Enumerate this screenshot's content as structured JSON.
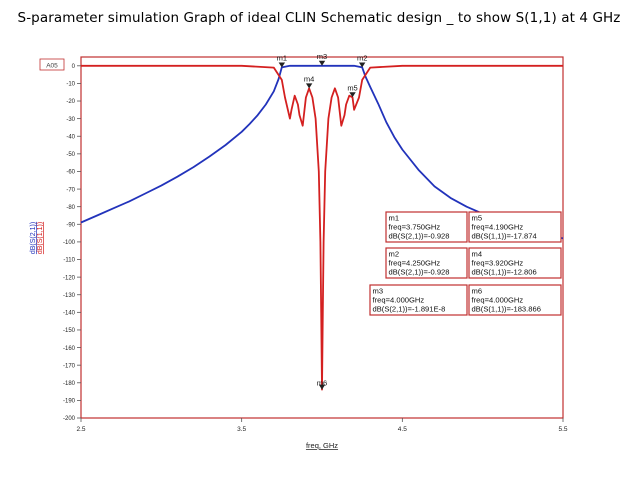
{
  "title": "S-parameter  simulation Graph of ideal CLIN Schematic design _ to show S(1,1) at 4 GHz",
  "colors": {
    "s21": "#2233bb",
    "s11": "#d42020",
    "frame": "#c03030",
    "grid": "#aaaaaa",
    "marker": "#222222"
  },
  "chart_data": {
    "type": "line",
    "title": "S-parameter  simulation Graph of ideal CLIN Schematic design _ to show S(1,1) at 4 GHz",
    "xlabel": "freq, GHz",
    "ylabel_lines": [
      "dB(S(2,1))",
      "dB(S(1,1))"
    ],
    "xlim": [
      2.5,
      5.5
    ],
    "ylim": [
      -200,
      5
    ],
    "x_ticks": [
      2.5,
      3.5,
      4.5,
      5.5
    ],
    "x_tick_labels": [
      "2.5",
      "3.5",
      "4.5",
      "5.5"
    ],
    "y_ticks": [
      0,
      -10,
      -20,
      -30,
      -40,
      -50,
      -60,
      -70,
      -80,
      -90,
      -100,
      -110,
      -120,
      -130,
      -140,
      -150,
      -160,
      -170,
      -180,
      -190,
      -200
    ],
    "y_tick_labels": [
      "0",
      "-10",
      "-20",
      "-30",
      "-40",
      "-50",
      "-60",
      "-70",
      "-80",
      "-90",
      "-100",
      "-110",
      "-120",
      "-130",
      "-140",
      "-150",
      "-160",
      "-170",
      "-180",
      "-190",
      "-200"
    ],
    "corner_label": "A05",
    "grid": false,
    "series": [
      {
        "name": "dB(S(2,1))",
        "color": "#2233bb",
        "x": [
          2.5,
          2.6,
          2.7,
          2.8,
          2.9,
          3.0,
          3.1,
          3.2,
          3.3,
          3.4,
          3.5,
          3.55,
          3.6,
          3.65,
          3.7,
          3.73,
          3.75,
          3.8,
          4.0,
          4.2,
          4.25,
          4.27,
          4.3,
          4.35,
          4.4,
          4.45,
          4.5,
          4.6,
          4.7,
          4.8,
          4.9,
          5.0,
          5.1,
          5.2,
          5.3,
          5.4,
          5.5
        ],
        "y": [
          -89,
          -85,
          -81,
          -77,
          -72.5,
          -68,
          -63,
          -57.5,
          -51.5,
          -45,
          -37.5,
          -33,
          -28,
          -22,
          -14.5,
          -7.5,
          -0.928,
          0,
          0,
          0,
          -0.928,
          -6,
          -12,
          -21.5,
          -32,
          -40.5,
          -47.5,
          -59,
          -68.5,
          -75,
          -80,
          -84,
          -87.5,
          -90.5,
          -93.5,
          -96,
          -98
        ]
      },
      {
        "name": "dB(S(1,1))",
        "color": "#d42020",
        "x": [
          2.5,
          3.5,
          3.7,
          3.75,
          3.77,
          3.8,
          3.81,
          3.83,
          3.85,
          3.86,
          3.88,
          3.9,
          3.92,
          3.94,
          3.96,
          3.98,
          3.99,
          3.995,
          4.0,
          4.005,
          4.01,
          4.02,
          4.04,
          4.06,
          4.08,
          4.1,
          4.12,
          4.14,
          4.15,
          4.17,
          4.19,
          4.2,
          4.23,
          4.25,
          4.3,
          4.5,
          5.5
        ],
        "y": [
          0,
          0,
          -1,
          -8,
          -18,
          -30,
          -25,
          -17,
          -22,
          -28,
          -34,
          -18,
          -12.8,
          -18,
          -30,
          -60,
          -100,
          -140,
          -183.866,
          -140,
          -100,
          -60,
          -30,
          -18,
          -12.8,
          -18,
          -34,
          -28,
          -22,
          -17,
          -17.874,
          -25,
          -18,
          -8,
          -1,
          0,
          0
        ]
      }
    ],
    "markers": [
      {
        "name": "m1",
        "freq": 3.75,
        "value": -0.928
      },
      {
        "name": "m2",
        "freq": 4.25,
        "value": -0.928
      },
      {
        "name": "m3",
        "freq": 4.0,
        "value": -1.891e-08
      },
      {
        "name": "m4",
        "freq": 3.92,
        "value": -12.806
      },
      {
        "name": "m5",
        "freq": 4.19,
        "value": -17.874
      },
      {
        "name": "m6",
        "freq": 4.0,
        "value": -183.866
      }
    ],
    "marker_boxes": [
      {
        "name": "m1",
        "lines": [
          "m1",
          "freq=3.750GHz",
          "dB(S(2,1))=-0.928"
        ]
      },
      {
        "name": "m5",
        "lines": [
          "m5",
          "freq=4.190GHz",
          "dB(S(1,1))=-17.874"
        ]
      },
      {
        "name": "m2",
        "lines": [
          "m2",
          "freq=4.250GHz",
          "dB(S(2,1))=-0.928"
        ]
      },
      {
        "name": "m4",
        "lines": [
          "m4",
          "freq=3.920GHz",
          "dB(S(1,1))=-12.806"
        ]
      },
      {
        "name": "m3",
        "lines": [
          "m3",
          "freq=4.000GHz",
          "dB(S(2,1))=-1.891E-8"
        ]
      },
      {
        "name": "m6",
        "lines": [
          "m6",
          "freq=4.000GHz",
          "dB(S(1,1))=-183.866"
        ]
      }
    ]
  }
}
